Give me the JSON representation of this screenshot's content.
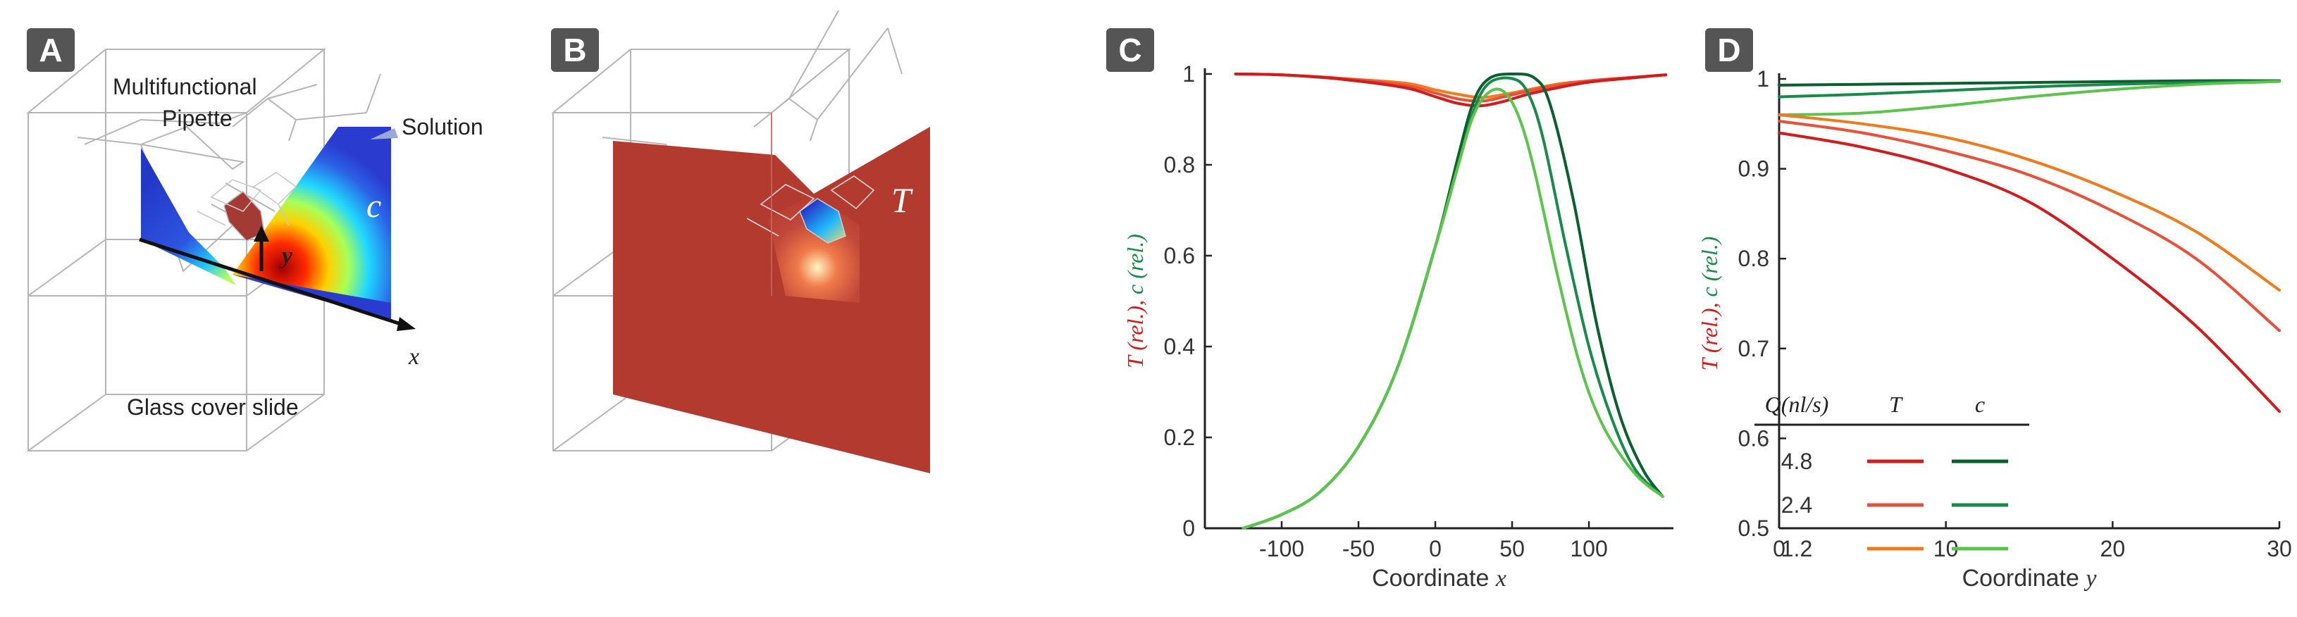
{
  "panels": {
    "A": {
      "label": "A",
      "text_pipette_1": "Multifunctional",
      "text_pipette_2": "Pipette",
      "text_solution": "Solution",
      "text_glass": "Glass cover slide",
      "symbol_c": "c",
      "axis_y": "y",
      "axis_x": "x"
    },
    "B": {
      "label": "B",
      "symbol_T": "T"
    },
    "C": {
      "label": "C"
    },
    "D": {
      "label": "D"
    }
  },
  "colors": {
    "T_4.8": "#d01c1c",
    "T_2.4": "#e8503a",
    "T_1.2": "#f07a1c",
    "c_4.8": "#0b5e2e",
    "c_2.4": "#1a8a4a",
    "c_1.2": "#5cc34c",
    "label_box": "#555555",
    "T_field": "#b33a2e"
  },
  "chart_data": [
    {
      "panel": "C",
      "type": "line",
      "xlabel": "Coordinate x",
      "ylabel": "T (rel.), c (rel.)",
      "xlim": [
        -150,
        155
      ],
      "ylim": [
        0,
        1
      ],
      "xticks": [
        -100,
        -50,
        0,
        50,
        100
      ],
      "yticks": [
        0,
        0.2,
        0.4,
        0.6,
        0.8,
        1
      ],
      "ytick_labels": [
        "0",
        "0.2",
        "0.4",
        "0.6",
        "0.8",
        "1"
      ],
      "grid": false,
      "series": [
        {
          "key": "T_1.2",
          "x": [
            -130,
            -100,
            -60,
            -20,
            0,
            15,
            30,
            45,
            60,
            80,
            100,
            130,
            150
          ],
          "y": [
            1.0,
            0.998,
            0.99,
            0.98,
            0.965,
            0.955,
            0.948,
            0.955,
            0.965,
            0.978,
            0.985,
            0.993,
            0.998
          ]
        },
        {
          "key": "T_2.4",
          "x": [
            -130,
            -100,
            -60,
            -20,
            0,
            15,
            30,
            45,
            60,
            80,
            100,
            130,
            150
          ],
          "y": [
            1.0,
            0.998,
            0.99,
            0.975,
            0.958,
            0.945,
            0.94,
            0.95,
            0.962,
            0.975,
            0.985,
            0.993,
            0.998
          ]
        },
        {
          "key": "T_4.8",
          "x": [
            -130,
            -100,
            -60,
            -20,
            0,
            15,
            30,
            45,
            60,
            80,
            100,
            130,
            150
          ],
          "y": [
            1.0,
            0.998,
            0.988,
            0.97,
            0.95,
            0.935,
            0.93,
            0.94,
            0.955,
            0.97,
            0.982,
            0.992,
            0.998
          ]
        },
        {
          "key": "c_4.8",
          "x": [
            -125,
            -100,
            -75,
            -50,
            -25,
            0,
            15,
            25,
            35,
            50,
            65,
            75,
            90,
            105,
            120,
            135,
            148
          ],
          "y": [
            0.0,
            0.03,
            0.08,
            0.18,
            0.35,
            0.62,
            0.82,
            0.94,
            0.99,
            1.0,
            0.99,
            0.93,
            0.72,
            0.45,
            0.25,
            0.13,
            0.07
          ]
        },
        {
          "key": "c_2.4",
          "x": [
            -125,
            -100,
            -75,
            -50,
            -25,
            0,
            15,
            25,
            35,
            50,
            60,
            70,
            85,
            100,
            115,
            130,
            148
          ],
          "y": [
            0.0,
            0.03,
            0.08,
            0.18,
            0.35,
            0.62,
            0.8,
            0.92,
            0.98,
            0.99,
            0.96,
            0.86,
            0.62,
            0.4,
            0.24,
            0.13,
            0.07
          ]
        },
        {
          "key": "c_1.2",
          "x": [
            -125,
            -100,
            -75,
            -50,
            -25,
            0,
            15,
            25,
            35,
            45,
            55,
            65,
            80,
            95,
            110,
            130,
            148
          ],
          "y": [
            0.0,
            0.03,
            0.08,
            0.18,
            0.35,
            0.62,
            0.8,
            0.91,
            0.96,
            0.96,
            0.9,
            0.78,
            0.55,
            0.35,
            0.22,
            0.12,
            0.07
          ]
        }
      ]
    },
    {
      "panel": "D",
      "type": "line",
      "xlabel": "Coordinate y",
      "ylabel": "T (rel.), c (rel.)",
      "xlim": [
        0,
        30
      ],
      "ylim": [
        0.5,
        1
      ],
      "xticks": [
        0,
        10,
        20,
        30
      ],
      "yticks": [
        0.5,
        0.6,
        0.7,
        0.8,
        0.9,
        1
      ],
      "ytick_labels": [
        "0.5",
        "0.6",
        "0.7",
        "0.8",
        "0.9",
        "1"
      ],
      "grid": false,
      "series": [
        {
          "key": "c_4.8",
          "x": [
            0,
            5,
            10,
            15,
            20,
            25,
            30
          ],
          "y": [
            0.993,
            0.994,
            0.995,
            0.996,
            0.997,
            0.998,
            0.998
          ]
        },
        {
          "key": "c_2.4",
          "x": [
            0,
            5,
            10,
            15,
            20,
            25,
            30
          ],
          "y": [
            0.98,
            0.983,
            0.987,
            0.991,
            0.994,
            0.996,
            0.998
          ]
        },
        {
          "key": "c_1.2",
          "x": [
            0,
            5,
            10,
            15,
            20,
            25,
            30
          ],
          "y": [
            0.96,
            0.962,
            0.97,
            0.98,
            0.988,
            0.994,
            0.997
          ]
        },
        {
          "key": "T_1.2",
          "x": [
            0,
            5,
            10,
            15,
            20,
            25,
            30
          ],
          "y": [
            0.96,
            0.95,
            0.935,
            0.91,
            0.875,
            0.83,
            0.765
          ]
        },
        {
          "key": "T_2.4",
          "x": [
            0,
            5,
            10,
            15,
            20,
            25,
            30
          ],
          "y": [
            0.953,
            0.94,
            0.92,
            0.893,
            0.853,
            0.8,
            0.72
          ]
        },
        {
          "key": "T_4.8",
          "x": [
            0,
            5,
            10,
            15,
            20,
            25,
            30
          ],
          "y": [
            0.94,
            0.924,
            0.9,
            0.863,
            0.8,
            0.725,
            0.63
          ]
        }
      ],
      "legend": {
        "position": "bottom-left",
        "header_q": "Q(nl/s)",
        "header_T": "T",
        "header_c": "c",
        "rows": [
          {
            "q": "4.8",
            "T_key": "T_4.8",
            "c_key": "c_4.8"
          },
          {
            "q": "2.4",
            "T_key": "T_2.4",
            "c_key": "c_2.4"
          },
          {
            "q": "1.2",
            "T_key": "T_1.2",
            "c_key": "c_1.2"
          }
        ]
      }
    }
  ]
}
